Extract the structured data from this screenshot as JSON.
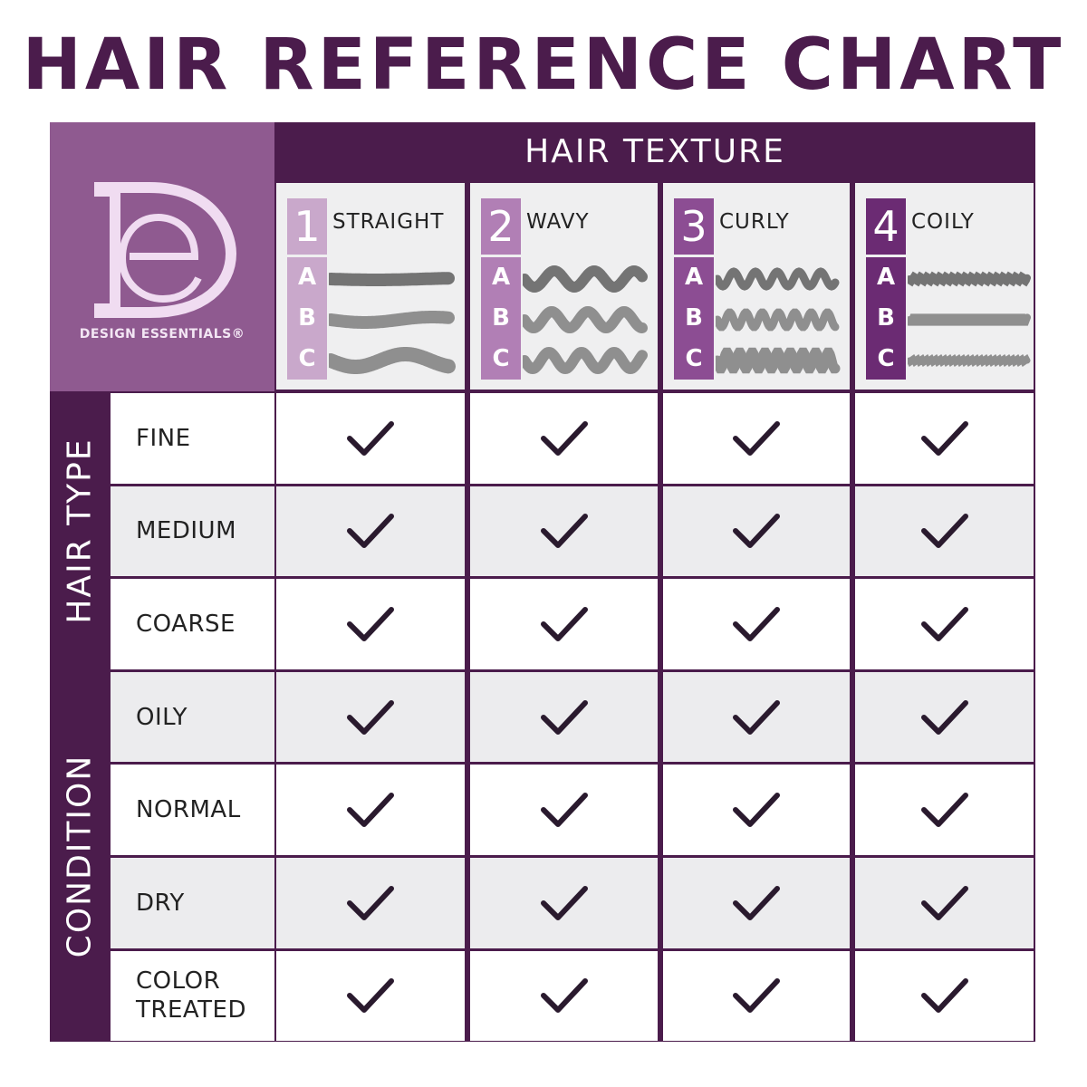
{
  "title": "HAIR REFERENCE CHART",
  "brand": {
    "logo_letters": "DE",
    "name": "DESIGN ESSENTIALS®"
  },
  "texture_header": "HAIR TEXTURE",
  "textures": [
    {
      "number": "1",
      "label": "STRAIGHT",
      "subtypes": [
        "A",
        "B",
        "C"
      ],
      "color": "#c9a8cb"
    },
    {
      "number": "2",
      "label": "WAVY",
      "subtypes": [
        "A",
        "B",
        "C"
      ],
      "color": "#b17fb5"
    },
    {
      "number": "3",
      "label": "CURLY",
      "subtypes": [
        "A",
        "B",
        "C"
      ],
      "color": "#8c4d93"
    },
    {
      "number": "4",
      "label": "COILY",
      "subtypes": [
        "A",
        "B",
        "C"
      ],
      "color": "#6b2b73"
    }
  ],
  "sections": [
    {
      "label": "HAIR TYPE",
      "rows": [
        {
          "label": "FINE",
          "checks": [
            true,
            true,
            true,
            true
          ]
        },
        {
          "label": "MEDIUM",
          "checks": [
            true,
            true,
            true,
            true
          ]
        },
        {
          "label": "COARSE",
          "checks": [
            true,
            true,
            true,
            true
          ]
        }
      ]
    },
    {
      "label": "CONDITION",
      "rows": [
        {
          "label": "OILY",
          "checks": [
            true,
            true,
            true,
            true
          ]
        },
        {
          "label": "NORMAL",
          "checks": [
            true,
            true,
            true,
            true
          ]
        },
        {
          "label": "DRY",
          "checks": [
            true,
            true,
            true,
            true
          ]
        },
        {
          "label": "COLOR TREATED",
          "checks": [
            true,
            true,
            true,
            true
          ]
        }
      ]
    }
  ],
  "colors": {
    "dark_purple": "#4b1c4c",
    "logo_purple": "#8f5a90",
    "row_alt": "#ececee",
    "check": "#2a1a2e"
  },
  "icons": {
    "check": "check-icon",
    "hair_sample": "hair-strand-icon"
  }
}
